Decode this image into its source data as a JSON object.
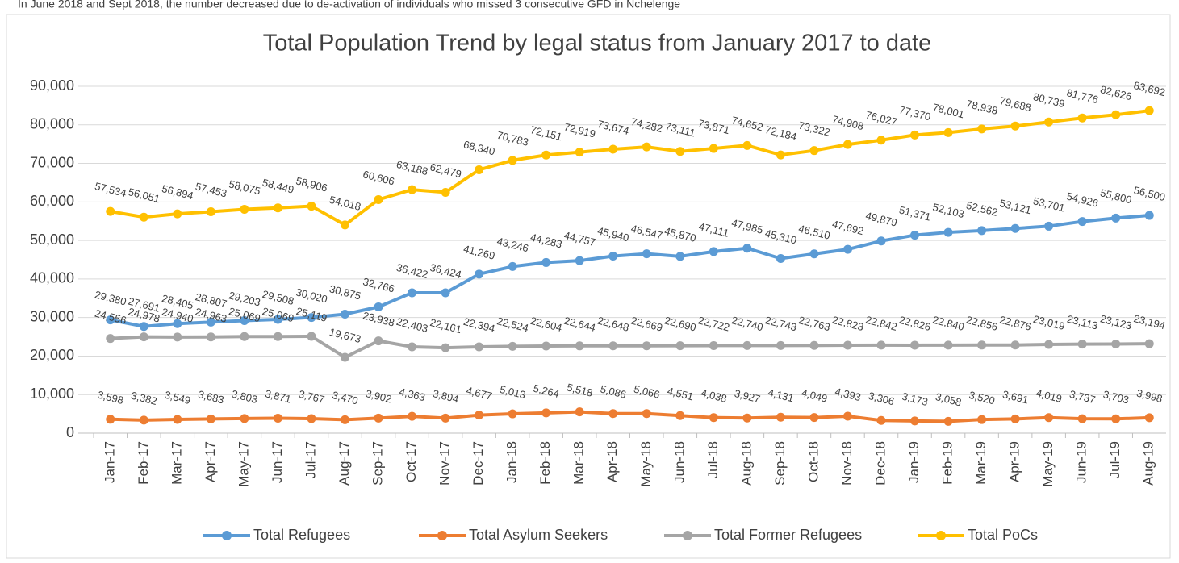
{
  "chart_data": {
    "type": "line",
    "annotation": "In June 2018 and Sept 2018, the number decreased due to de-activation of individuals who missed 3 consecutive GFD in Nchelenge",
    "title": "Total Population Trend by legal status from January 2017 to date",
    "categories": [
      "Jan-17",
      "Feb-17",
      "Mar-17",
      "Apr-17",
      "May-17",
      "Jun-17",
      "Jul-17",
      "Aug-17",
      "Sep-17",
      "Oct-17",
      "Nov-17",
      "Dec-17",
      "Jan-18",
      "Feb-18",
      "Mar-18",
      "Apr-18",
      "May-18",
      "Jun-18",
      "Jul-18",
      "Aug-18",
      "Sep-18",
      "Oct-18",
      "Nov-18",
      "Dec-18",
      "Jan-19",
      "Feb-19",
      "Mar-19",
      "Apr-19",
      "May-19",
      "Jun-19",
      "Jul-19",
      "Aug-19"
    ],
    "series": [
      {
        "name": "Total Refugees",
        "color": "#5b9bd5",
        "values": [
          29380,
          27691,
          28405,
          28807,
          29203,
          29508,
          30020,
          30875,
          32766,
          36422,
          36424,
          41269,
          43246,
          44283,
          44757,
          45940,
          46547,
          45870,
          47111,
          47985,
          45310,
          46510,
          47692,
          49879,
          51371,
          52103,
          52562,
          53121,
          53701,
          54926,
          55800,
          56500
        ],
        "value_labels": [
          "29,380",
          "27,691",
          "28,405",
          "28,807",
          "29,203",
          "29,508",
          "30,020",
          "30,875",
          "32,766",
          "36,422",
          "36,424",
          "41,269",
          "43,246",
          "44,283",
          "44,757",
          "45,940",
          "46,547",
          "45,870",
          "47,111",
          "47,985",
          "45,310",
          "46,510",
          "47,692",
          "49,879",
          "51,371",
          "52,103",
          "52,562",
          "53,121",
          "53,701",
          "54,926",
          "55,800",
          "56,500"
        ]
      },
      {
        "name": "Total Asylum Seekers",
        "color": "#ed7d31",
        "values": [
          3598,
          3382,
          3549,
          3683,
          3803,
          3871,
          3767,
          3470,
          3902,
          4363,
          3894,
          4677,
          5013,
          5264,
          5518,
          5086,
          5066,
          4551,
          4038,
          3927,
          4131,
          4049,
          4393,
          3306,
          3173,
          3058,
          3520,
          3691,
          4019,
          3737,
          3703,
          3998
        ],
        "value_labels": [
          "3,598",
          "3,382",
          "3,549",
          "3,683",
          "3,803",
          "3,871",
          "3,767",
          "3,470",
          "3,902",
          "4,363",
          "3,894",
          "4,677",
          "5,013",
          "5,264",
          "5,518",
          "5,086",
          "5,066",
          "4,551",
          "4,038",
          "3,927",
          "4,131",
          "4,049",
          "4,393",
          "3,306",
          "3,173",
          "3,058",
          "3,520",
          "3,691",
          "4,019",
          "3,737",
          "3,703",
          "3,998"
        ]
      },
      {
        "name": "Total Former Refugees",
        "color": "#a5a5a5",
        "values": [
          24556,
          24978,
          24940,
          24963,
          25069,
          25069,
          25119,
          19673,
          23938,
          22403,
          22161,
          22394,
          22524,
          22604,
          22644,
          22648,
          22669,
          22690,
          22722,
          22740,
          22743,
          22763,
          22823,
          22842,
          22826,
          22840,
          22856,
          22876,
          23019,
          23113,
          23123,
          23194
        ],
        "value_labels": [
          "24,556",
          "24,978",
          "24,940",
          "24,963",
          "25,069",
          "25,069",
          "25,119",
          "19,673",
          "23,938",
          "22,403",
          "22,161",
          "22,394",
          "22,524",
          "22,604",
          "22,644",
          "22,648",
          "22,669",
          "22,690",
          "22,722",
          "22,740",
          "22,743",
          "22,763",
          "22,823",
          "22,842",
          "22,826",
          "22,840",
          "22,856",
          "22,876",
          "23,019",
          "23,113",
          "23,123",
          "23,194"
        ]
      },
      {
        "name": "Total PoCs",
        "color": "#ffc000",
        "values": [
          57534,
          56051,
          56894,
          57453,
          58075,
          58449,
          58906,
          54018,
          60606,
          63188,
          62479,
          68340,
          70783,
          72151,
          72919,
          73674,
          74282,
          73111,
          73871,
          74652,
          72184,
          73322,
          74908,
          76027,
          77370,
          78001,
          78938,
          79688,
          80739,
          81776,
          82626,
          83692
        ],
        "value_labels": [
          "57,534",
          "56,051",
          "56,894",
          "57,453",
          "58,075",
          "58,449",
          "58,906",
          "54,018",
          "60,606",
          "63,188",
          "62,479",
          "68,340",
          "70,783",
          "72,151",
          "72,919",
          "73,674",
          "74,282",
          "73,111",
          "73,871",
          "74,652",
          "72,184",
          "73,322",
          "74,908",
          "76,027",
          "77,370",
          "78,001",
          "78,938",
          "79,688",
          "80,739",
          "81,776",
          "82,626",
          "83,692"
        ]
      }
    ],
    "ylim": [
      0,
      90000
    ],
    "yticks": [
      0,
      {
        "value": 10000,
        "label": "10,000"
      },
      {
        "value": 20000,
        "label": "20,000"
      },
      {
        "value": 30000,
        "label": "30,000"
      },
      {
        "value": 40000,
        "label": "40,000"
      },
      {
        "value": 50000,
        "label": "50,000"
      },
      {
        "value": 60000,
        "label": "60,000"
      },
      {
        "value": 70000,
        "label": "70,000"
      },
      {
        "value": 80000,
        "label": "80,000"
      },
      {
        "value": 90000,
        "label": "90,000"
      }
    ],
    "grid": true,
    "legend": "bottom"
  }
}
